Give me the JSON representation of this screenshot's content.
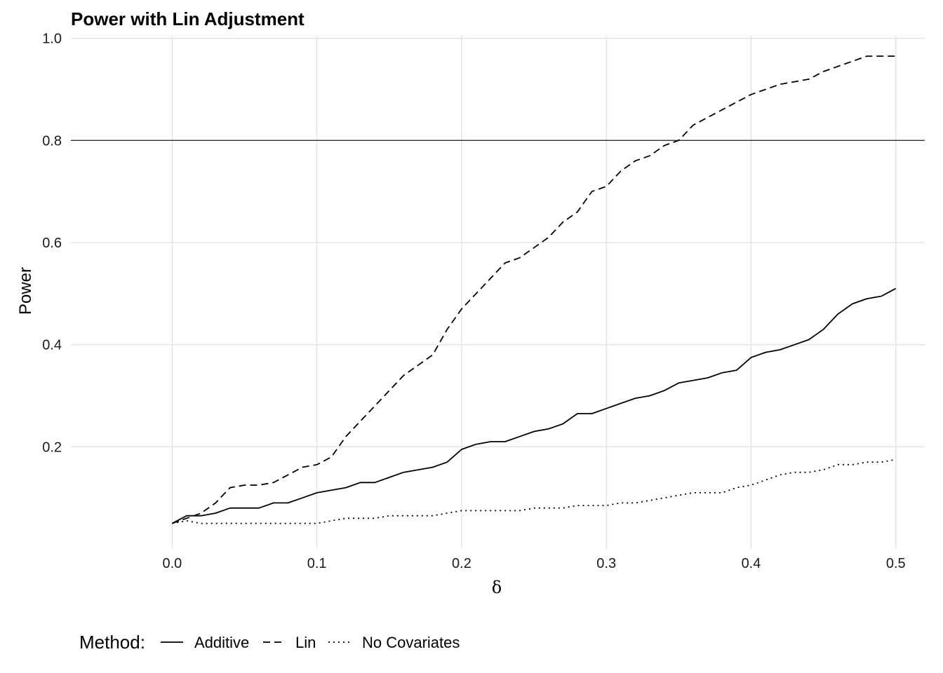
{
  "chart_data": {
    "type": "line",
    "title": "Power with Lin Adjustment",
    "xlabel": "δ",
    "ylabel": "Power",
    "xlim": [
      -0.07,
      0.52
    ],
    "ylim": [
      0.0,
      1.005
    ],
    "x_ticks": [
      0.0,
      0.1,
      0.2,
      0.3,
      0.4,
      0.5
    ],
    "x_tick_labels": [
      "0.0",
      "0.1",
      "0.2",
      "0.3",
      "0.4",
      "0.5"
    ],
    "y_ticks": [
      0.2,
      0.4,
      0.6,
      0.8,
      1.0
    ],
    "y_tick_labels": [
      "0.2",
      "0.4",
      "0.6",
      "0.8",
      "1.0"
    ],
    "grid": true,
    "hline": 0.8,
    "legend": {
      "title": "Method:",
      "position": "bottom",
      "entries": [
        {
          "label": "Additive",
          "dash": "solid"
        },
        {
          "label": "Lin",
          "dash": "dashed"
        },
        {
          "label": "No Covariates",
          "dash": "dotted"
        }
      ]
    },
    "series": [
      {
        "name": "Lin",
        "dash": "dashed",
        "x": [
          0.0,
          0.01,
          0.02,
          0.03,
          0.04,
          0.05,
          0.06,
          0.07,
          0.08,
          0.09,
          0.1,
          0.11,
          0.12,
          0.13,
          0.14,
          0.15,
          0.16,
          0.17,
          0.18,
          0.19,
          0.2,
          0.21,
          0.22,
          0.23,
          0.24,
          0.25,
          0.26,
          0.27,
          0.28,
          0.29,
          0.3,
          0.31,
          0.32,
          0.33,
          0.34,
          0.35,
          0.36,
          0.37,
          0.38,
          0.39,
          0.4,
          0.41,
          0.42,
          0.43,
          0.44,
          0.45,
          0.46,
          0.47,
          0.48,
          0.49,
          0.5
        ],
        "values": [
          0.05,
          0.06,
          0.07,
          0.09,
          0.12,
          0.125,
          0.125,
          0.13,
          0.145,
          0.16,
          0.165,
          0.18,
          0.22,
          0.25,
          0.28,
          0.31,
          0.34,
          0.36,
          0.38,
          0.43,
          0.47,
          0.5,
          0.53,
          0.56,
          0.57,
          0.59,
          0.61,
          0.64,
          0.66,
          0.7,
          0.71,
          0.74,
          0.76,
          0.77,
          0.79,
          0.8,
          0.83,
          0.845,
          0.86,
          0.875,
          0.89,
          0.9,
          0.91,
          0.915,
          0.92,
          0.935,
          0.945,
          0.955,
          0.965,
          0.965,
          0.965
        ]
      },
      {
        "name": "Additive",
        "dash": "solid",
        "x": [
          0.0,
          0.01,
          0.02,
          0.03,
          0.04,
          0.05,
          0.06,
          0.07,
          0.08,
          0.09,
          0.1,
          0.11,
          0.12,
          0.13,
          0.14,
          0.15,
          0.16,
          0.17,
          0.18,
          0.19,
          0.2,
          0.21,
          0.22,
          0.23,
          0.24,
          0.25,
          0.26,
          0.27,
          0.28,
          0.29,
          0.3,
          0.31,
          0.32,
          0.33,
          0.34,
          0.35,
          0.36,
          0.37,
          0.38,
          0.39,
          0.4,
          0.41,
          0.42,
          0.43,
          0.44,
          0.45,
          0.46,
          0.47,
          0.48,
          0.49,
          0.5
        ],
        "values": [
          0.05,
          0.065,
          0.065,
          0.07,
          0.08,
          0.08,
          0.08,
          0.09,
          0.09,
          0.1,
          0.11,
          0.115,
          0.12,
          0.13,
          0.13,
          0.14,
          0.15,
          0.155,
          0.16,
          0.17,
          0.195,
          0.205,
          0.21,
          0.21,
          0.22,
          0.23,
          0.235,
          0.245,
          0.265,
          0.265,
          0.275,
          0.285,
          0.295,
          0.3,
          0.31,
          0.325,
          0.33,
          0.335,
          0.345,
          0.35,
          0.375,
          0.385,
          0.39,
          0.4,
          0.41,
          0.43,
          0.46,
          0.48,
          0.49,
          0.495,
          0.51
        ]
      },
      {
        "name": "No Covariates",
        "dash": "dotted",
        "x": [
          0.0,
          0.01,
          0.02,
          0.03,
          0.04,
          0.05,
          0.06,
          0.07,
          0.08,
          0.09,
          0.1,
          0.11,
          0.12,
          0.13,
          0.14,
          0.15,
          0.16,
          0.17,
          0.18,
          0.19,
          0.2,
          0.21,
          0.22,
          0.23,
          0.24,
          0.25,
          0.26,
          0.27,
          0.28,
          0.29,
          0.3,
          0.31,
          0.32,
          0.33,
          0.34,
          0.35,
          0.36,
          0.37,
          0.38,
          0.39,
          0.4,
          0.41,
          0.42,
          0.43,
          0.44,
          0.45,
          0.46,
          0.47,
          0.48,
          0.49,
          0.5
        ],
        "values": [
          0.05,
          0.055,
          0.05,
          0.05,
          0.05,
          0.05,
          0.05,
          0.05,
          0.05,
          0.05,
          0.05,
          0.055,
          0.06,
          0.06,
          0.06,
          0.065,
          0.065,
          0.065,
          0.065,
          0.07,
          0.075,
          0.075,
          0.075,
          0.075,
          0.075,
          0.08,
          0.08,
          0.08,
          0.085,
          0.085,
          0.085,
          0.09,
          0.09,
          0.095,
          0.1,
          0.105,
          0.11,
          0.11,
          0.11,
          0.12,
          0.125,
          0.135,
          0.145,
          0.15,
          0.15,
          0.155,
          0.165,
          0.165,
          0.17,
          0.17,
          0.175
        ]
      }
    ]
  }
}
